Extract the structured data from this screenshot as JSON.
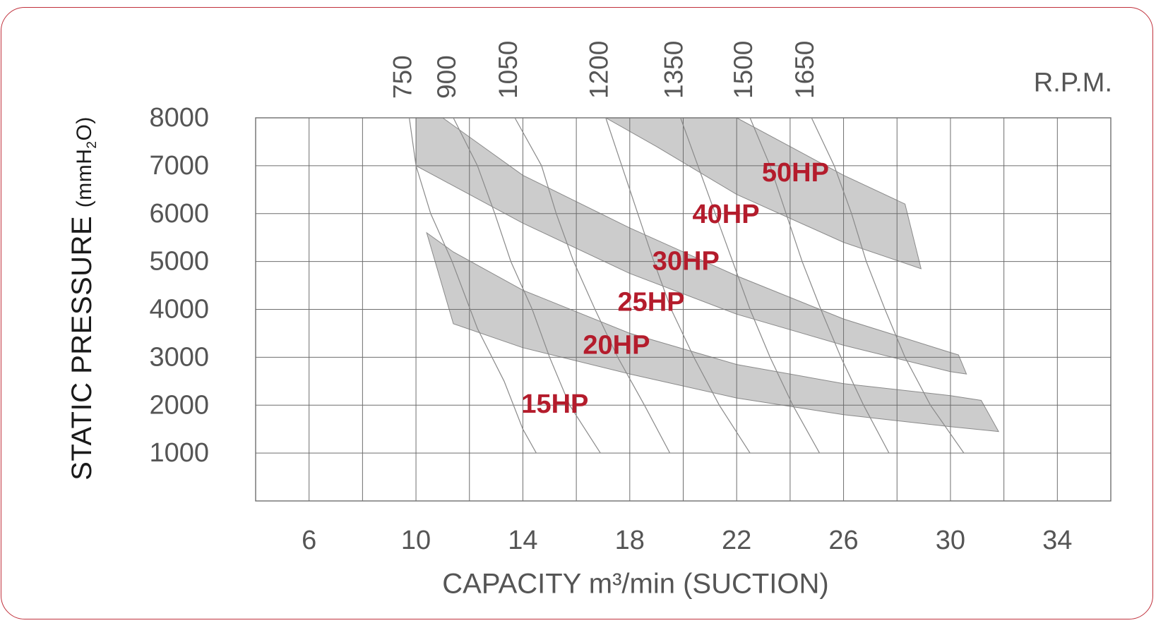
{
  "chart_data": {
    "type": "line",
    "xlabel": "CAPACITY m³/min (SUCTION)",
    "ylabel": "STATIC PRESSURE",
    "ylabel_unit": "(mmH",
    "ylabel_unit_sub": "2",
    "ylabel_unit_end": "O)",
    "xlim": [
      4,
      36
    ],
    "ylim": [
      0,
      8000
    ],
    "x_ticks": [
      6,
      10,
      14,
      18,
      22,
      26,
      30,
      34
    ],
    "y_ticks": [
      8000,
      7000,
      6000,
      5000,
      4000,
      3000,
      2000,
      1000
    ],
    "grid": true,
    "rpm_title": "R.P.M.",
    "rpm_curves": [
      {
        "label": "750",
        "points": [
          [
            9.75,
            8000
          ],
          [
            10.0,
            7000
          ],
          [
            10.55,
            6000
          ],
          [
            11.35,
            5000
          ],
          [
            12.3,
            3600
          ],
          [
            13.3,
            2500
          ],
          [
            14.0,
            1500
          ],
          [
            14.5,
            1000
          ]
        ]
      },
      {
        "label": "900",
        "points": [
          [
            11.4,
            8000
          ],
          [
            12.3,
            7000
          ],
          [
            12.95,
            6000
          ],
          [
            13.55,
            5000
          ],
          [
            14.35,
            4000
          ],
          [
            15.0,
            3000
          ],
          [
            15.75,
            2000
          ],
          [
            16.9,
            1000
          ]
        ]
      },
      {
        "label": "1050",
        "points": [
          [
            13.7,
            8000
          ],
          [
            14.7,
            7000
          ],
          [
            15.25,
            6000
          ],
          [
            15.9,
            5000
          ],
          [
            16.7,
            4000
          ],
          [
            17.55,
            3000
          ],
          [
            18.55,
            2000
          ],
          [
            19.5,
            1000
          ]
        ]
      },
      {
        "label": "1200",
        "points": [
          [
            17.1,
            8000
          ],
          [
            17.7,
            7000
          ],
          [
            18.3,
            6000
          ],
          [
            18.9,
            5000
          ],
          [
            19.55,
            4000
          ],
          [
            20.4,
            3000
          ],
          [
            21.35,
            2000
          ],
          [
            22.5,
            1000
          ]
        ]
      },
      {
        "label": "1350",
        "points": [
          [
            19.9,
            8000
          ],
          [
            20.55,
            7000
          ],
          [
            21.2,
            6000
          ],
          [
            21.85,
            5000
          ],
          [
            22.5,
            4000
          ],
          [
            23.25,
            3000
          ],
          [
            24.1,
            2000
          ],
          [
            25.1,
            1000
          ]
        ]
      },
      {
        "label": "1500",
        "points": [
          [
            22.5,
            8000
          ],
          [
            23.25,
            7000
          ],
          [
            23.85,
            6000
          ],
          [
            24.45,
            5000
          ],
          [
            25.15,
            4000
          ],
          [
            25.9,
            3000
          ],
          [
            26.75,
            2000
          ],
          [
            27.7,
            1000
          ]
        ]
      },
      {
        "label": "1650",
        "points": [
          [
            24.8,
            8000
          ],
          [
            25.65,
            7000
          ],
          [
            26.3,
            6000
          ],
          [
            26.85,
            5000
          ],
          [
            27.55,
            4000
          ],
          [
            28.3,
            3000
          ],
          [
            29.25,
            2000
          ],
          [
            30.5,
            1000
          ]
        ]
      }
    ],
    "hp_bands": [
      {
        "upper": [
          [
            10.4,
            5600
          ],
          [
            11.4,
            5200
          ],
          [
            14.0,
            4400
          ],
          [
            18.0,
            3500
          ],
          [
            22.0,
            2850
          ],
          [
            26.0,
            2450
          ],
          [
            30.0,
            2200
          ],
          [
            31.15,
            2100
          ]
        ],
        "lower": [
          [
            11.4,
            3700
          ],
          [
            14.0,
            3200
          ],
          [
            18.0,
            2650
          ],
          [
            22.0,
            2150
          ],
          [
            26.0,
            1800
          ],
          [
            30.0,
            1550
          ],
          [
            31.8,
            1450
          ]
        ]
      },
      {
        "upper": [
          [
            10.0,
            8000
          ],
          [
            11.0,
            8000
          ],
          [
            14.0,
            6800
          ],
          [
            18.0,
            5700
          ],
          [
            22.0,
            4700
          ],
          [
            26.0,
            3800
          ],
          [
            30.0,
            3100
          ],
          [
            30.3,
            3050
          ]
        ],
        "lower": [
          [
            10.0,
            7000
          ],
          [
            14.0,
            5800
          ],
          [
            18.0,
            4750
          ],
          [
            22.0,
            3900
          ],
          [
            26.0,
            3250
          ],
          [
            30.0,
            2700
          ],
          [
            30.6,
            2650
          ]
        ]
      },
      {
        "upper": [
          [
            17.1,
            8000
          ],
          [
            22.0,
            8000
          ],
          [
            24.0,
            7400
          ],
          [
            26.0,
            6800
          ],
          [
            28.3,
            6200
          ]
        ],
        "lower": [
          [
            17.1,
            8000
          ],
          [
            19.0,
            7400
          ],
          [
            22.0,
            6400
          ],
          [
            26.0,
            5400
          ],
          [
            28.9,
            4850
          ]
        ]
      }
    ],
    "hp_labels": [
      {
        "text": "50HP",
        "x": 24.2,
        "y": 6850
      },
      {
        "text": "40HP",
        "x": 21.6,
        "y": 5980
      },
      {
        "text": "30HP",
        "x": 20.1,
        "y": 5000
      },
      {
        "text": "25HP",
        "x": 18.8,
        "y": 4150
      },
      {
        "text": "20HP",
        "x": 17.5,
        "y": 3250
      },
      {
        "text": "15HP",
        "x": 15.2,
        "y": 2020
      }
    ]
  },
  "colors": {
    "frame": "#c0313c",
    "band_fill": "#cccccc",
    "grid": "#6e6e6e",
    "curve": "#8a8a8a",
    "tick_text": "#555555",
    "hp_text": "#b41c2c",
    "axis_title": "#1a1a1a"
  }
}
